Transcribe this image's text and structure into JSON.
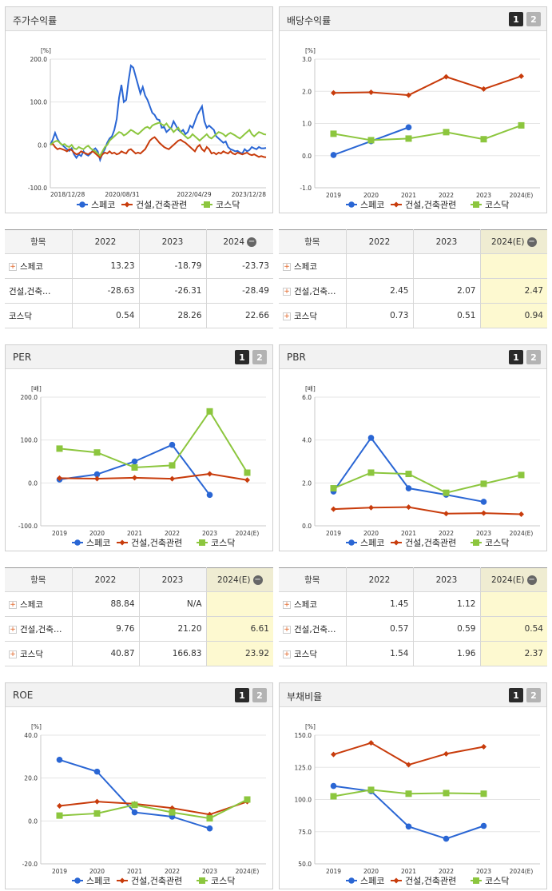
{
  "colors": {
    "s1": "#2a66d4",
    "s2": "#c83c0c",
    "s3": "#8cc63e"
  },
  "legend": [
    "스페코",
    "건설,건축관련",
    "코스닥"
  ],
  "buttons": [
    "1",
    "2"
  ],
  "panels": {
    "stock": {
      "title": "주가수익률"
    },
    "dividend": {
      "title": "배당수익률"
    },
    "per": {
      "title": "PER"
    },
    "pbr": {
      "title": "PBR"
    },
    "roe": {
      "title": "ROE"
    },
    "debt": {
      "title": "부채비율"
    }
  },
  "tables": {
    "stock": {
      "headers": [
        "항목",
        "2022",
        "2023",
        "2024"
      ],
      "rows": [
        {
          "name": "스페코",
          "values": [
            "13.23",
            "-18.79",
            "-23.73"
          ]
        },
        {
          "name": "건설,건축…",
          "values": [
            "-28.63",
            "-26.31",
            "-28.49"
          ]
        },
        {
          "name": "코스닥",
          "values": [
            "0.54",
            "28.26",
            "22.66"
          ]
        }
      ]
    },
    "dividend": {
      "headers": [
        "항목",
        "2022",
        "2023",
        "2024(E)"
      ],
      "rows": [
        {
          "name": "스페코",
          "values": [
            "",
            "",
            ""
          ]
        },
        {
          "name": "건설,건축…",
          "values": [
            "2.45",
            "2.07",
            "2.47"
          ]
        },
        {
          "name": "코스닥",
          "values": [
            "0.73",
            "0.51",
            "0.94"
          ]
        }
      ]
    },
    "per": {
      "headers": [
        "항목",
        "2022",
        "2023",
        "2024(E)"
      ],
      "rows": [
        {
          "name": "스페코",
          "values": [
            "88.84",
            "N/A",
            ""
          ]
        },
        {
          "name": "건설,건축…",
          "values": [
            "9.76",
            "21.20",
            "6.61"
          ]
        },
        {
          "name": "코스닥",
          "values": [
            "40.87",
            "166.83",
            "23.92"
          ]
        }
      ]
    },
    "pbr": {
      "headers": [
        "항목",
        "2022",
        "2023",
        "2024(E)"
      ],
      "rows": [
        {
          "name": "스페코",
          "values": [
            "1.45",
            "1.12",
            ""
          ]
        },
        {
          "name": "건설,건축…",
          "values": [
            "0.57",
            "0.59",
            "0.54"
          ]
        },
        {
          "name": "코스닥",
          "values": [
            "1.54",
            "1.96",
            "2.37"
          ]
        }
      ]
    }
  },
  "chart_data": [
    {
      "id": "stock",
      "type": "line",
      "title": "주가수익률",
      "unit": "[%]",
      "ylim": [
        -100,
        200
      ],
      "yticks": [
        "200.0",
        "100.0",
        "0.0",
        "-100.0"
      ],
      "x_ticks": [
        "2018/12/28",
        "2020/08/31",
        "2022/04/29",
        "2023/12/28"
      ],
      "series": [
        {
          "name": "스페코",
          "values": [
            0,
            12,
            28,
            14,
            5,
            0,
            -5,
            -10,
            -14,
            -8,
            -22,
            -30,
            -22,
            -26,
            -15,
            -22,
            -25,
            -20,
            -12,
            -8,
            -15,
            -35,
            -20,
            -10,
            5,
            15,
            20,
            35,
            60,
            110,
            140,
            100,
            105,
            150,
            185,
            180,
            160,
            140,
            120,
            135,
            115,
            105,
            90,
            75,
            70,
            60,
            58,
            40,
            42,
            30,
            35,
            40,
            55,
            45,
            35,
            30,
            35,
            25,
            30,
            45,
            40,
            55,
            70,
            80,
            90,
            55,
            40,
            45,
            40,
            35,
            20,
            15,
            10,
            5,
            8,
            -5,
            -10,
            -12,
            -15,
            -14,
            -18,
            -20,
            -10,
            -15,
            -12,
            -5,
            -8,
            -10,
            -5,
            -8,
            -8,
            -7
          ]
        },
        {
          "name": "건설,건축관련",
          "values": [
            0,
            3,
            -5,
            -10,
            -8,
            -10,
            -12,
            -15,
            -10,
            -12,
            -18,
            -22,
            -20,
            -15,
            -18,
            -20,
            -22,
            -18,
            -15,
            -20,
            -25,
            -30,
            -22,
            -18,
            -20,
            -15,
            -20,
            -18,
            -22,
            -20,
            -15,
            -18,
            -20,
            -12,
            -10,
            -15,
            -20,
            -18,
            -20,
            -15,
            -10,
            0,
            10,
            15,
            18,
            12,
            5,
            0,
            -5,
            -8,
            -10,
            -5,
            0,
            5,
            10,
            12,
            8,
            5,
            0,
            -5,
            -10,
            -15,
            -5,
            0,
            -10,
            -15,
            -5,
            -10,
            -20,
            -18,
            -22,
            -18,
            -20,
            -15,
            -18,
            -20,
            -15,
            -20,
            -22,
            -18,
            -20,
            -22,
            -20,
            -18,
            -22,
            -24,
            -22,
            -25,
            -28,
            -26,
            -28,
            -29
          ]
        },
        {
          "name": "코스닥",
          "values": [
            0,
            5,
            8,
            10,
            5,
            0,
            2,
            -3,
            -5,
            0,
            -8,
            -10,
            -5,
            -8,
            -10,
            -5,
            -2,
            -8,
            -12,
            -15,
            -20,
            -25,
            -15,
            -5,
            0,
            10,
            15,
            20,
            25,
            30,
            28,
            22,
            25,
            30,
            35,
            32,
            28,
            25,
            30,
            35,
            40,
            42,
            38,
            45,
            48,
            50,
            52,
            48,
            45,
            50,
            42,
            38,
            30,
            35,
            40,
            30,
            25,
            20,
            15,
            18,
            25,
            20,
            15,
            10,
            15,
            20,
            25,
            18,
            15,
            20,
            25,
            30,
            28,
            25,
            20,
            25,
            28,
            25,
            22,
            18,
            15,
            20,
            25,
            30,
            35,
            25,
            20,
            25,
            30,
            28,
            25,
            24
          ]
        }
      ]
    },
    {
      "id": "dividend",
      "type": "line",
      "title": "배당수익률",
      "unit": "[%]",
      "ylim": [
        -1,
        3
      ],
      "yticks": [
        "3.0",
        "2.0",
        "1.0",
        "0.0",
        "-1.0"
      ],
      "categories": [
        "2019",
        "2020",
        "2021",
        "2022",
        "2023",
        "2024(E)"
      ],
      "series": [
        {
          "name": "스페코",
          "values": [
            0.02,
            0.45,
            0.88,
            null,
            null,
            null
          ]
        },
        {
          "name": "건설,건축관련",
          "values": [
            1.95,
            1.97,
            1.88,
            2.45,
            2.07,
            2.47
          ]
        },
        {
          "name": "코스닥",
          "values": [
            0.68,
            0.48,
            0.53,
            0.73,
            0.51,
            0.94
          ]
        }
      ]
    },
    {
      "id": "per",
      "type": "line",
      "title": "PER",
      "unit": "[배]",
      "ylim": [
        -100,
        200
      ],
      "yticks": [
        "200.0",
        "100.0",
        "0.0",
        "-100.0"
      ],
      "categories": [
        "2019",
        "2020",
        "2021",
        "2022",
        "2023",
        "2024(E)"
      ],
      "series": [
        {
          "name": "스페코",
          "values": [
            8,
            20,
            50,
            88.84,
            -28,
            null
          ]
        },
        {
          "name": "건설,건축관련",
          "values": [
            11,
            10,
            12,
            9.76,
            21.2,
            6.61
          ]
        },
        {
          "name": "코스닥",
          "values": [
            80,
            71,
            36,
            40.87,
            166.83,
            23.92
          ]
        }
      ]
    },
    {
      "id": "pbr",
      "type": "line",
      "title": "PBR",
      "unit": "[배]",
      "ylim": [
        0,
        6
      ],
      "yticks": [
        "6.0",
        "4.0",
        "2.0",
        "0.0"
      ],
      "categories": [
        "2019",
        "2020",
        "2021",
        "2022",
        "2023",
        "2024(E)"
      ],
      "series": [
        {
          "name": "스페코",
          "values": [
            1.6,
            4.1,
            1.75,
            1.45,
            1.12,
            null
          ]
        },
        {
          "name": "건설,건축관련",
          "values": [
            0.78,
            0.85,
            0.87,
            0.57,
            0.59,
            0.54
          ]
        },
        {
          "name": "코스닥",
          "values": [
            1.75,
            2.48,
            2.42,
            1.54,
            1.96,
            2.37
          ]
        }
      ]
    },
    {
      "id": "roe",
      "type": "line",
      "title": "ROE",
      "unit": "[%]",
      "ylim": [
        -20,
        40
      ],
      "yticks": [
        "40.0",
        "20.0",
        "0.0",
        "-20.0"
      ],
      "categories": [
        "2019",
        "2020",
        "2021",
        "2022",
        "2023",
        "2024(E)"
      ],
      "series": [
        {
          "name": "스페코",
          "values": [
            28.5,
            23,
            4,
            2,
            -3.5,
            null
          ]
        },
        {
          "name": "건설,건축관련",
          "values": [
            7,
            9,
            8,
            6,
            3,
            9
          ]
        },
        {
          "name": "코스닥",
          "values": [
            2.5,
            3.5,
            7.5,
            4,
            1.2,
            10
          ]
        }
      ]
    },
    {
      "id": "debt",
      "type": "line",
      "title": "부채비율",
      "unit": "[%]",
      "ylim": [
        50,
        150
      ],
      "yticks": [
        "150.0",
        "125.0",
        "100.0",
        "75.0",
        "50.0"
      ],
      "categories": [
        "2019",
        "2020",
        "2021",
        "2022",
        "2023",
        "2024(E)"
      ],
      "series": [
        {
          "name": "스페코",
          "values": [
            110.5,
            106.5,
            79,
            69.5,
            79.5,
            null
          ]
        },
        {
          "name": "건설,건축관련",
          "values": [
            135,
            144,
            127,
            135.5,
            141,
            null
          ]
        },
        {
          "name": "코스닥",
          "values": [
            102.5,
            107.5,
            104.5,
            105,
            104.5,
            null
          ]
        }
      ]
    }
  ]
}
